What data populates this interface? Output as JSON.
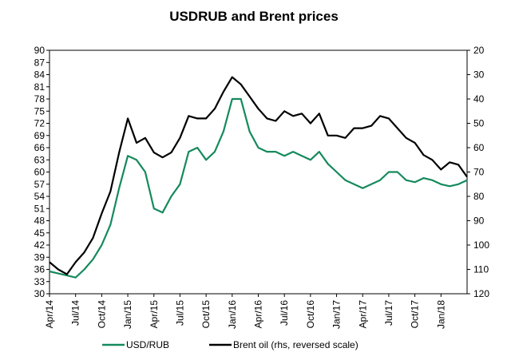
{
  "chart_data": {
    "type": "line",
    "title": "USDRUB and Brent prices",
    "x": [
      "2014-04",
      "2014-05",
      "2014-06",
      "2014-07",
      "2014-08",
      "2014-09",
      "2014-10",
      "2014-11",
      "2014-12",
      "2015-01",
      "2015-02",
      "2015-03",
      "2015-04",
      "2015-05",
      "2015-06",
      "2015-07",
      "2015-08",
      "2015-09",
      "2015-10",
      "2015-11",
      "2015-12",
      "2016-01",
      "2016-02",
      "2016-03",
      "2016-04",
      "2016-05",
      "2016-06",
      "2016-07",
      "2016-08",
      "2016-09",
      "2016-10",
      "2016-11",
      "2016-12",
      "2017-01",
      "2017-02",
      "2017-03",
      "2017-04",
      "2017-05",
      "2017-06",
      "2017-07",
      "2017-08",
      "2017-09",
      "2017-10",
      "2017-11",
      "2017-12",
      "2018-01",
      "2018-02",
      "2018-03",
      "2018-04"
    ],
    "xlim": [
      "2014-04",
      "2018-04"
    ],
    "xticks": [
      {
        "value": "2014-04",
        "label": "Apr/14"
      },
      {
        "value": "2014-07",
        "label": "Jul/14"
      },
      {
        "value": "2014-10",
        "label": "Oct/14"
      },
      {
        "value": "2015-01",
        "label": "Jan/15"
      },
      {
        "value": "2015-04",
        "label": "Apr/15"
      },
      {
        "value": "2015-07",
        "label": "Jul/15"
      },
      {
        "value": "2015-10",
        "label": "Oct/15"
      },
      {
        "value": "2016-01",
        "label": "Jan/16"
      },
      {
        "value": "2016-04",
        "label": "Apr/16"
      },
      {
        "value": "2016-07",
        "label": "Jul/16"
      },
      {
        "value": "2016-10",
        "label": "Oct/16"
      },
      {
        "value": "2017-01",
        "label": "Jan/17"
      },
      {
        "value": "2017-04",
        "label": "Apr/17"
      },
      {
        "value": "2017-07",
        "label": "Jul/17"
      },
      {
        "value": "2017-10",
        "label": "Oct/17"
      },
      {
        "value": "2018-01",
        "label": "Jan/18"
      }
    ],
    "ylim": [
      30,
      90
    ],
    "yticks": [
      30,
      33,
      36,
      39,
      42,
      45,
      48,
      51,
      54,
      57,
      60,
      63,
      66,
      69,
      72,
      75,
      78,
      81,
      84,
      87,
      90
    ],
    "y2lim": [
      120,
      20
    ],
    "y2ticks": [
      120,
      110,
      100,
      90,
      80,
      70,
      60,
      50,
      40,
      30,
      20
    ],
    "legend": "bottom",
    "series": [
      {
        "name": "USD/RUB",
        "color": "#158a5c",
        "values": [
          35.5,
          35,
          34.5,
          34,
          36,
          38.5,
          42,
          47,
          56,
          64,
          63,
          60,
          51,
          50,
          54,
          57,
          65,
          66,
          63,
          65,
          70,
          78,
          78,
          70,
          66,
          65,
          65,
          64,
          65,
          64,
          63,
          65,
          62,
          60,
          58,
          57,
          56,
          57,
          58,
          60,
          60,
          58,
          57.5,
          58.5,
          58,
          57,
          56.5,
          57,
          58
        ]
      },
      {
        "name": "Brent oil (rhs, reversed scale)",
        "color": "#000000",
        "axis": "y2",
        "values": [
          107,
          110,
          112,
          107,
          103,
          97,
          87,
          78,
          62,
          48,
          58,
          56,
          62,
          64,
          62,
          56,
          47,
          48,
          48,
          44,
          37,
          31,
          34,
          39,
          44,
          48,
          49,
          45,
          47,
          46,
          50,
          46,
          55,
          55,
          56,
          52,
          52,
          51,
          47,
          48,
          52,
          56,
          58,
          63,
          65,
          69,
          66,
          67,
          72
        ]
      }
    ]
  }
}
